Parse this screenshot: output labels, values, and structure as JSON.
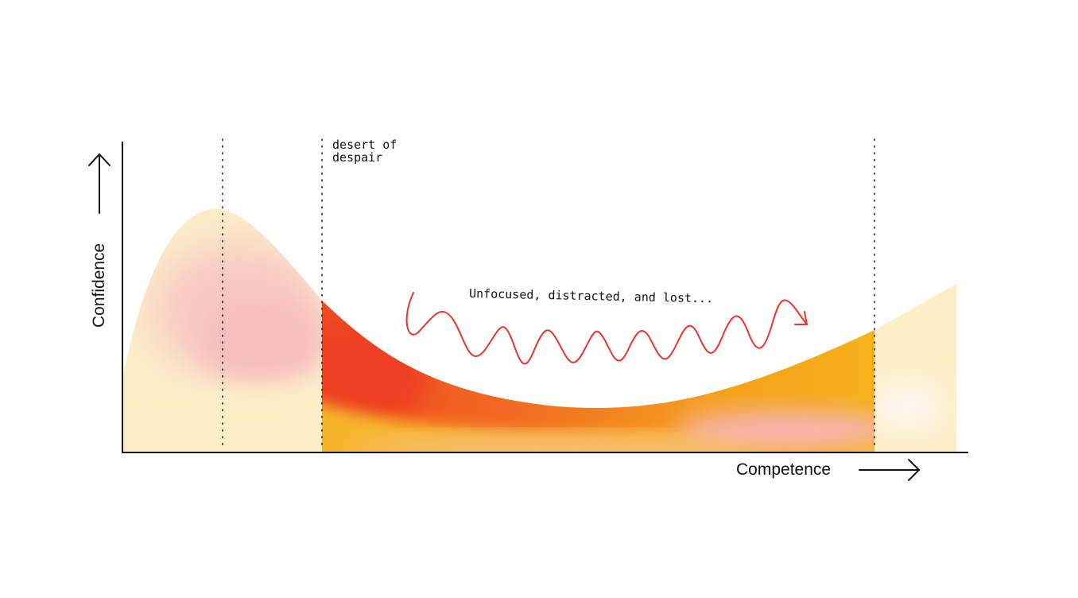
{
  "axes": {
    "y_label": "Confidence",
    "x_label": "Competence"
  },
  "annotations": {
    "zone_label_line1": "desert of",
    "zone_label_line2": "despair",
    "wave_label": "Unfocused, distracted, and lost..."
  },
  "colors": {
    "pale_cream": "#fcefc8",
    "soft_pink": "#f8c9c6",
    "deep_orange": "#f15a24",
    "amber": "#f5b21a",
    "light_pink": "#f7b8c0",
    "squiggle_red": "#e8372c",
    "ink": "#111111"
  },
  "icons": {
    "y_arrow": "arrow-up-icon",
    "x_arrow": "arrow-right-icon"
  }
}
